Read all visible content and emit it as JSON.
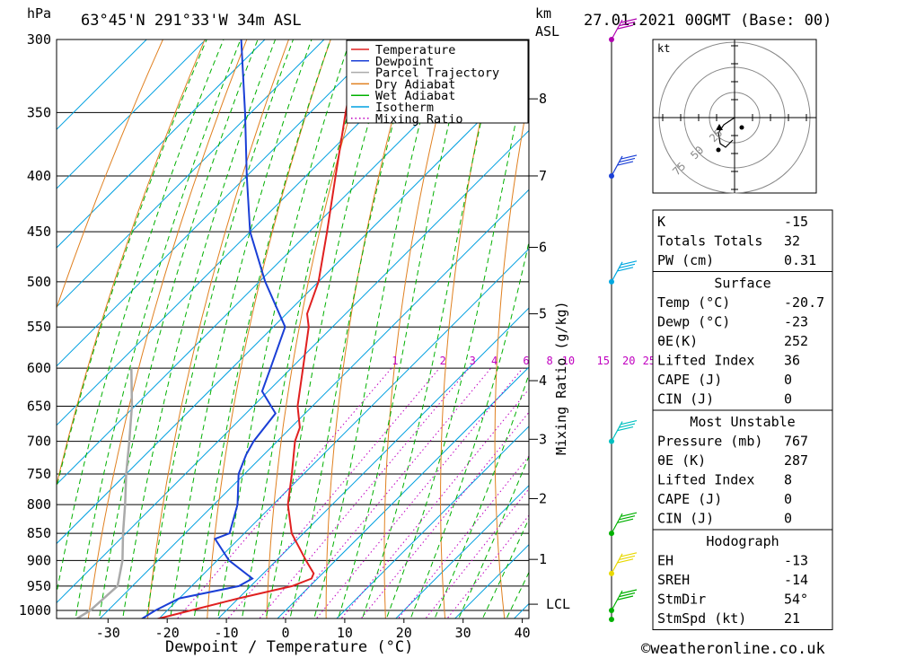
{
  "header": {
    "p_unit": "hPa",
    "location": "63°45'N 291°33'W 34m ASL",
    "km_unit": "km",
    "asl": "ASL",
    "datetime": "27.01.2021 00GMT (Base: 00)"
  },
  "footer": {
    "copyright": "©weatheronline.co.uk"
  },
  "chart_data": {
    "type": "skew-t",
    "xlabel": "Dewpoint / Temperature (°C)",
    "ylabel_right": "Mixing Ratio (g/kg)",
    "pressure_levels": [
      300,
      350,
      400,
      450,
      500,
      550,
      600,
      650,
      700,
      750,
      800,
      850,
      900,
      950,
      1000
    ],
    "x_ticks": [
      -30,
      -20,
      -10,
      0,
      10,
      20,
      30,
      40
    ],
    "km_ticks": [
      {
        "km": "8",
        "p": 340
      },
      {
        "km": "7",
        "p": 400
      },
      {
        "km": "6",
        "p": 465
      },
      {
        "km": "5",
        "p": 535
      },
      {
        "km": "4",
        "p": 616
      },
      {
        "km": "3",
        "p": 697
      },
      {
        "km": "2",
        "p": 790
      },
      {
        "km": "1",
        "p": 898
      },
      {
        "km": "LCL",
        "p": 987
      }
    ],
    "mixing_ratio_labels": [
      "1",
      "2",
      "3",
      "4",
      "6",
      "8",
      "10",
      "15",
      "20",
      "25"
    ],
    "legend": [
      "Temperature",
      "Dewpoint",
      "Parcel Trajectory",
      "Dry Adiabat",
      "Wet Adiabat",
      "Isotherm",
      "Mixing Ratio"
    ],
    "temperature_profile": [
      {
        "p": 1020,
        "t": -20.7
      },
      {
        "p": 1000,
        "t": -16.0
      },
      {
        "p": 975,
        "t": -10.0
      },
      {
        "p": 950,
        "t": -3.0
      },
      {
        "p": 935,
        "t": -1.0
      },
      {
        "p": 925,
        "t": -1.5
      },
      {
        "p": 900,
        "t": -5.0
      },
      {
        "p": 850,
        "t": -12.0
      },
      {
        "p": 800,
        "t": -17.5
      },
      {
        "p": 750,
        "t": -22.0
      },
      {
        "p": 700,
        "t": -27.0
      },
      {
        "p": 680,
        "t": -28.5
      },
      {
        "p": 650,
        "t": -32.5
      },
      {
        "p": 600,
        "t": -38.0
      },
      {
        "p": 550,
        "t": -44.0
      },
      {
        "p": 535,
        "t": -46.5
      },
      {
        "p": 500,
        "t": -50.0
      },
      {
        "p": 450,
        "t": -57.0
      },
      {
        "p": 400,
        "t": -65.0
      },
      {
        "p": 350,
        "t": -74.0
      },
      {
        "p": 300,
        "t": -84.0
      }
    ],
    "dewpoint_profile": [
      {
        "p": 1020,
        "t": -23.0
      },
      {
        "p": 1000,
        "t": -22.0
      },
      {
        "p": 975,
        "t": -20.0
      },
      {
        "p": 950,
        "t": -12.0
      },
      {
        "p": 935,
        "t": -11.0
      },
      {
        "p": 900,
        "t": -18.0
      },
      {
        "p": 860,
        "t": -24.0
      },
      {
        "p": 850,
        "t": -22.5
      },
      {
        "p": 800,
        "t": -26.0
      },
      {
        "p": 750,
        "t": -31.0
      },
      {
        "p": 720,
        "t": -33.0
      },
      {
        "p": 700,
        "t": -34.0
      },
      {
        "p": 660,
        "t": -35.0
      },
      {
        "p": 630,
        "t": -41.0
      },
      {
        "p": 600,
        "t": -43.5
      },
      {
        "p": 550,
        "t": -48.0
      },
      {
        "p": 500,
        "t": -59.0
      },
      {
        "p": 450,
        "t": -70.0
      },
      {
        "p": 400,
        "t": -80.0
      },
      {
        "p": 350,
        "t": -91.0
      },
      {
        "p": 300,
        "t": -104.0
      }
    ],
    "parcel_profile": [
      {
        "p": 1020,
        "t": -34.0
      },
      {
        "p": 1000,
        "t": -33.0
      },
      {
        "p": 950,
        "t": -32.5
      },
      {
        "p": 900,
        "t": -36.0
      },
      {
        "p": 850,
        "t": -40.5
      },
      {
        "p": 800,
        "t": -45.0
      },
      {
        "p": 750,
        "t": -50.0
      },
      {
        "p": 700,
        "t": -55.0
      },
      {
        "p": 650,
        "t": -60.5
      },
      {
        "p": 600,
        "t": -67.0
      }
    ],
    "wind_barb_levels": [
      {
        "p": 300,
        "color": "#b000b0"
      },
      {
        "p": 400,
        "color": "#1a3fd6"
      },
      {
        "p": 500,
        "color": "#00a8e0"
      },
      {
        "p": 700,
        "color": "#00c0c0"
      },
      {
        "p": 850,
        "color": "#00b000"
      },
      {
        "p": 925,
        "color": "#e8d800"
      },
      {
        "p": 1000,
        "color": "#00b000"
      }
    ],
    "hodograph": {
      "unit": "kt",
      "rings": [
        "25",
        "50",
        "75"
      ]
    }
  },
  "indices": {
    "top": [
      {
        "label": "K",
        "value": "-15"
      },
      {
        "label": "Totals Totals",
        "value": "32"
      },
      {
        "label": "PW (cm)",
        "value": "0.31"
      }
    ],
    "surface_title": "Surface",
    "surface": [
      {
        "label": "Temp (°C)",
        "value": "-20.7"
      },
      {
        "label": "Dewp (°C)",
        "value": "-23"
      },
      {
        "label": "θE(K)",
        "value": "252"
      },
      {
        "label": "Lifted Index",
        "value": "36"
      },
      {
        "label": "CAPE (J)",
        "value": "0"
      },
      {
        "label": "CIN (J)",
        "value": "0"
      }
    ],
    "mu_title": "Most Unstable",
    "mu": [
      {
        "label": "Pressure (mb)",
        "value": "767"
      },
      {
        "label": "θE (K)",
        "value": "287"
      },
      {
        "label": "Lifted Index",
        "value": "8"
      },
      {
        "label": "CAPE (J)",
        "value": "0"
      },
      {
        "label": "CIN (J)",
        "value": "0"
      }
    ],
    "hodo_title": "Hodograph",
    "hodo": [
      {
        "label": "EH",
        "value": "-13"
      },
      {
        "label": "SREH",
        "value": "-14"
      },
      {
        "label": "StmDir",
        "value": "54°"
      },
      {
        "label": "StmSpd (kt)",
        "value": "21"
      }
    ]
  }
}
